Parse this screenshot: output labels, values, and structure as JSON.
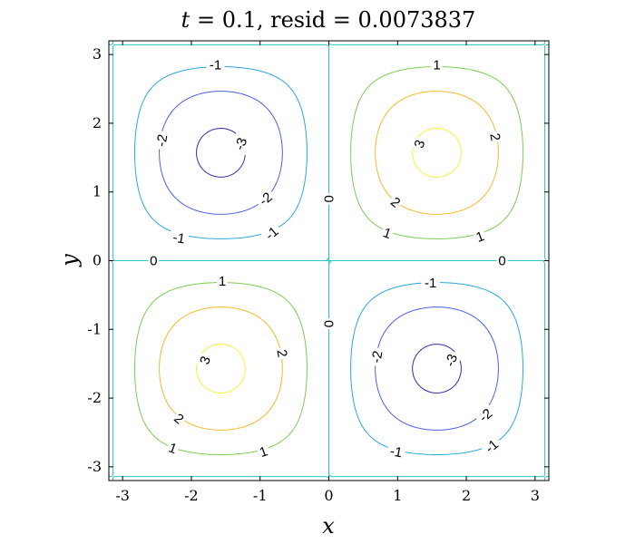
{
  "chart_data": {
    "type": "contour",
    "title": "t = 0.1, resid = 0.0073837",
    "title_parts": {
      "t_var": "t",
      "t_eq": " = 0.1, ",
      "resid_word": "resid",
      "resid_eq": " = 0.0073837"
    },
    "xlabel": "x",
    "ylabel": "y",
    "xlim": [
      -3.2,
      3.2
    ],
    "ylim": [
      -3.2,
      3.2
    ],
    "xticks": [
      -3,
      -2,
      -1,
      0,
      1,
      2,
      3
    ],
    "yticks": [
      -3,
      -2,
      -1,
      0,
      1,
      2,
      3
    ],
    "xtick_labels": [
      "-3",
      "-2",
      "-1",
      "0",
      "1",
      "2",
      "3"
    ],
    "ytick_labels": [
      "-3",
      "-2",
      "-1",
      "0",
      "1",
      "2",
      "3"
    ],
    "field": "3.2 * sin(x) * sin(y)",
    "levels": [
      -3,
      -2,
      -1,
      0,
      1,
      2,
      3
    ],
    "level_colors": {
      "-3": "#3d26a8",
      "-2": "#4a5ee8",
      "-1": "#2ca6e0",
      "0": "#2ec4c4",
      "1": "#7ccc52",
      "2": "#f6b92a",
      "3": "#f9f03c"
    },
    "contour_labels": [
      {
        "text": "-1",
        "x": -1.65,
        "y": 2.85,
        "rotate": 0
      },
      {
        "text": "-2",
        "x": -2.43,
        "y": 1.75,
        "rotate": -80
      },
      {
        "text": "-3",
        "x": -1.28,
        "y": 1.7,
        "rotate": -70
      },
      {
        "text": "-2",
        "x": -0.92,
        "y": 0.9,
        "rotate": -40
      },
      {
        "text": "-1",
        "x": -2.18,
        "y": 0.33,
        "rotate": 10
      },
      {
        "text": "-1",
        "x": -0.83,
        "y": 0.4,
        "rotate": -40
      },
      {
        "text": "1",
        "x": 1.57,
        "y": 2.85,
        "rotate": 0
      },
      {
        "text": "3",
        "x": 1.32,
        "y": 1.7,
        "rotate": -70
      },
      {
        "text": "2",
        "x": 2.42,
        "y": 1.8,
        "rotate": 80
      },
      {
        "text": "2",
        "x": 0.97,
        "y": 0.85,
        "rotate": 40
      },
      {
        "text": "1",
        "x": 0.85,
        "y": 0.4,
        "rotate": 20
      },
      {
        "text": "1",
        "x": 2.2,
        "y": 0.35,
        "rotate": -20
      },
      {
        "text": "0",
        "x": 0.0,
        "y": 0.9,
        "rotate": -90
      },
      {
        "text": "0",
        "x": -2.55,
        "y": 0.0,
        "rotate": 0
      },
      {
        "text": "0",
        "x": 2.52,
        "y": 0.0,
        "rotate": 0
      },
      {
        "text": "0",
        "x": 0.0,
        "y": -0.92,
        "rotate": -90
      },
      {
        "text": "1",
        "x": -1.55,
        "y": -0.3,
        "rotate": 0
      },
      {
        "text": "3",
        "x": -1.8,
        "y": -1.45,
        "rotate": -70
      },
      {
        "text": "2",
        "x": -0.68,
        "y": -1.35,
        "rotate": 80
      },
      {
        "text": "2",
        "x": -2.18,
        "y": -2.3,
        "rotate": 40
      },
      {
        "text": "1",
        "x": -2.27,
        "y": -2.73,
        "rotate": 20
      },
      {
        "text": "1",
        "x": -0.95,
        "y": -2.78,
        "rotate": -20
      },
      {
        "text": "-1",
        "x": 1.48,
        "y": -0.32,
        "rotate": 0
      },
      {
        "text": "-2",
        "x": 0.7,
        "y": -1.4,
        "rotate": -80
      },
      {
        "text": "-3",
        "x": 1.78,
        "y": -1.45,
        "rotate": -70
      },
      {
        "text": "-2",
        "x": 2.28,
        "y": -2.25,
        "rotate": -40
      },
      {
        "text": "-1",
        "x": 0.98,
        "y": -2.78,
        "rotate": 10
      },
      {
        "text": "-1",
        "x": 2.37,
        "y": -2.7,
        "rotate": -40
      }
    ],
    "grid": false
  }
}
